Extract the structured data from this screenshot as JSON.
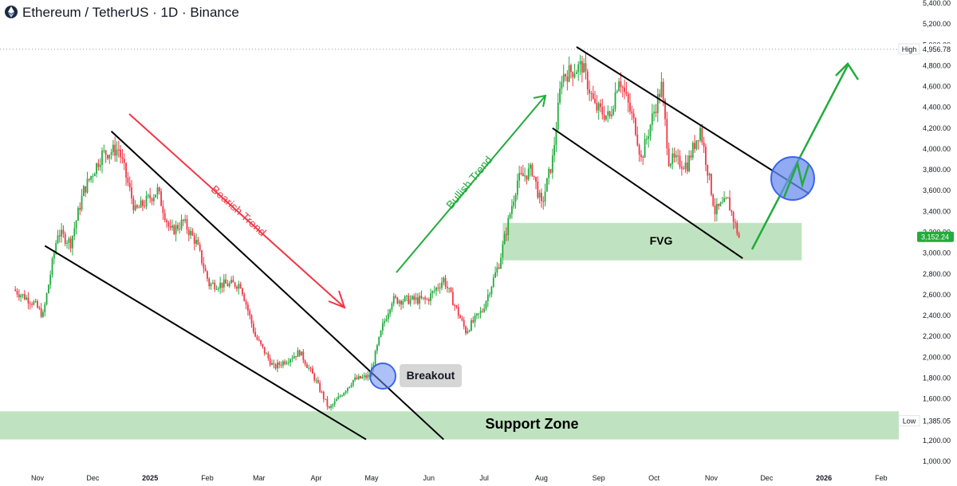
{
  "header": {
    "title": "Ethereum / TetherUS · 1D · Binance",
    "logo_icon": "ethereum-logo-icon"
  },
  "chart_data": {
    "type": "candlestick",
    "symbol": "Ethereum / TetherUS",
    "interval": "1D",
    "exchange": "Binance",
    "ylim": [
      1000,
      5400
    ],
    "y_ticks": [
      "1,000.00",
      "1,200.00",
      "1,400.00",
      "1,600.00",
      "1,800.00",
      "2,000.00",
      "2,200.00",
      "2,400.00",
      "2,600.00",
      "2,800.00",
      "3,000.00",
      "3,200.00",
      "3,400.00",
      "3,600.00",
      "3,800.00",
      "4,000.00",
      "4,200.00",
      "4,400.00",
      "4,600.00",
      "4,800.00",
      "5,000.00",
      "5,200.00",
      "5,400.00"
    ],
    "x_ticks": [
      {
        "label": "Nov",
        "date": "2024-11-01"
      },
      {
        "label": "Dec",
        "date": "2024-12-01"
      },
      {
        "label": "2025",
        "date": "2025-01-01",
        "bold": true
      },
      {
        "label": "Feb",
        "date": "2025-02-01"
      },
      {
        "label": "Mar",
        "date": "2025-03-01"
      },
      {
        "label": "Apr",
        "date": "2025-04-01"
      },
      {
        "label": "May",
        "date": "2025-05-01"
      },
      {
        "label": "Jun",
        "date": "2025-06-01"
      },
      {
        "label": "Jul",
        "date": "2025-07-01"
      },
      {
        "label": "Aug",
        "date": "2025-08-01"
      },
      {
        "label": "Sep",
        "date": "2025-09-01"
      },
      {
        "label": "Oct",
        "date": "2025-10-01"
      },
      {
        "label": "Nov",
        "date": "2025-11-01"
      },
      {
        "label": "Dec",
        "date": "2025-12-01"
      },
      {
        "label": "2026",
        "date": "2026-01-01",
        "bold": true
      },
      {
        "label": "Feb",
        "date": "2026-02-01"
      }
    ],
    "high": {
      "label": "High",
      "value": 4956.78,
      "text": "4,956.78"
    },
    "low": {
      "label": "Low",
      "value": 1385.05,
      "text": "1,385.05"
    },
    "last_price": {
      "value": 3152.24,
      "text": "3,152.24"
    },
    "price_path": [
      [
        "2024-10-20",
        2650
      ],
      [
        "2024-10-31",
        2520
      ],
      [
        "2024-11-05",
        2400
      ],
      [
        "2024-11-13",
        3200
      ],
      [
        "2024-11-20",
        3100
      ],
      [
        "2024-11-27",
        3600
      ],
      [
        "2024-12-07",
        3950
      ],
      [
        "2024-12-16",
        4000
      ],
      [
        "2024-12-25",
        3400
      ],
      [
        "2025-01-06",
        3600
      ],
      [
        "2025-01-13",
        3200
      ],
      [
        "2025-01-20",
        3300
      ],
      [
        "2025-01-27",
        3100
      ],
      [
        "2025-02-03",
        2700
      ],
      [
        "2025-02-20",
        2700
      ],
      [
        "2025-02-28",
        2200
      ],
      [
        "2025-03-10",
        1900
      ],
      [
        "2025-03-24",
        2050
      ],
      [
        "2025-04-01",
        1800
      ],
      [
        "2025-04-09",
        1500
      ],
      [
        "2025-04-22",
        1780
      ],
      [
        "2025-05-01",
        1820
      ],
      [
        "2025-05-08",
        2300
      ],
      [
        "2025-05-13",
        2550
      ],
      [
        "2025-06-01",
        2550
      ],
      [
        "2025-06-10",
        2750
      ],
      [
        "2025-06-22",
        2250
      ],
      [
        "2025-07-01",
        2450
      ],
      [
        "2025-07-10",
        2900
      ],
      [
        "2025-07-20",
        3700
      ],
      [
        "2025-07-28",
        3800
      ],
      [
        "2025-08-02",
        3450
      ],
      [
        "2025-08-08",
        3900
      ],
      [
        "2025-08-13",
        4700
      ],
      [
        "2025-08-24",
        4800
      ],
      [
        "2025-08-31",
        4400
      ],
      [
        "2025-09-08",
        4300
      ],
      [
        "2025-09-13",
        4700
      ],
      [
        "2025-09-22",
        4200
      ],
      [
        "2025-09-25",
        3900
      ],
      [
        "2025-10-01",
        4300
      ],
      [
        "2025-10-06",
        4600
      ],
      [
        "2025-10-10",
        3900
      ],
      [
        "2025-10-20",
        3850
      ],
      [
        "2025-10-27",
        4200
      ],
      [
        "2025-11-04",
        3400
      ],
      [
        "2025-11-11",
        3500
      ],
      [
        "2025-11-17",
        3150
      ]
    ],
    "zones": [
      {
        "label": "Support Zone",
        "y_from": 1210,
        "y_to": 1480,
        "x_from": "2024-10-20",
        "x_to": "2026-02-10"
      },
      {
        "label": "FVG",
        "y_from": 2930,
        "y_to": 3290,
        "x_from": "2025-07-11",
        "x_to": "2025-12-20"
      }
    ],
    "trendlines": [
      {
        "name": "falling-wedge-upper",
        "from": [
          "2024-12-11",
          4170
        ],
        "to": [
          "2025-06-09",
          1210
        ]
      },
      {
        "name": "falling-wedge-lower",
        "from": [
          "2024-11-05",
          3070
        ],
        "to": [
          "2025-04-28",
          1210
        ]
      },
      {
        "name": "descending-channel-upper",
        "from": [
          "2025-08-20",
          4980
        ],
        "to": [
          "2025-12-24",
          3570
        ]
      },
      {
        "name": "descending-channel-lower",
        "from": [
          "2025-08-07",
          4200
        ],
        "to": [
          "2025-11-18",
          2950
        ]
      }
    ],
    "annotations": [
      {
        "text": "Bearish Trend",
        "color": "#f23645"
      },
      {
        "text": "Bullish Trend",
        "color": "#22ab3c"
      },
      {
        "text": "Breakout",
        "color": "#131722"
      },
      {
        "text": "Support Zone",
        "color": "#000000"
      },
      {
        "text": "FVG",
        "color": "#000000"
      }
    ],
    "colors": {
      "up": "#22ab3c",
      "down": "#f23645",
      "zone": "#bfe3c0",
      "circle": "#6b8ef0",
      "arrow_red": "#f23645",
      "arrow_green": "#22ab3c"
    }
  }
}
